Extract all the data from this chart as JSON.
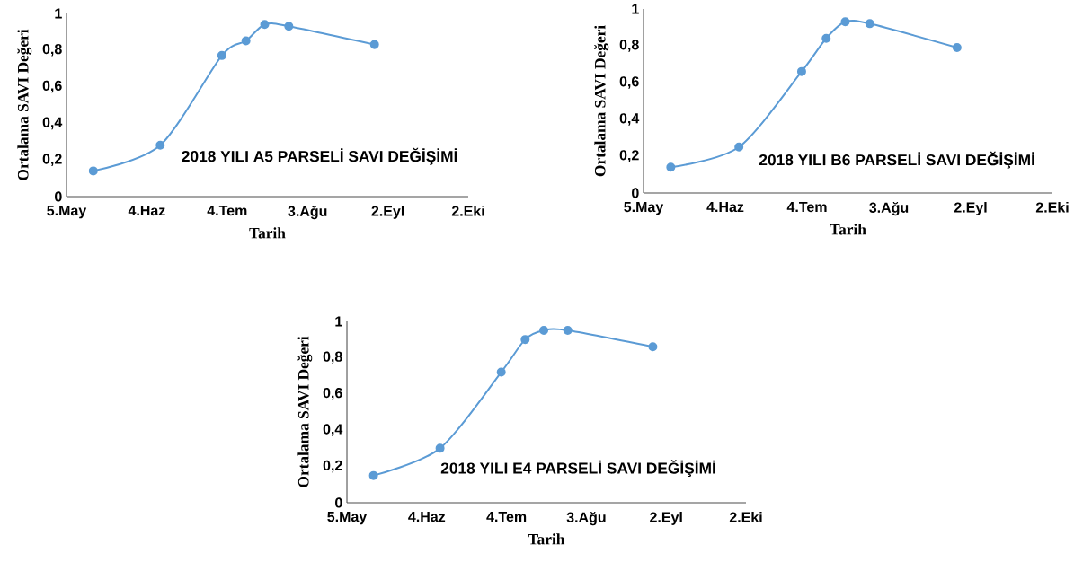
{
  "chart_data": [
    {
      "type": "line",
      "title": "2018 YILI A5 PARSELİ SAVI DEĞİŞİMİ",
      "xlabel": "Tarih",
      "ylabel": "Ortalama SAVI Değeri",
      "x": [
        "2018-05-15",
        "2018-06-09",
        "2018-07-02",
        "2018-07-11",
        "2018-07-18",
        "2018-07-27",
        "2018-08-28"
      ],
      "series": [
        {
          "color": "#5b9bd5",
          "values": [
            0.14,
            0.28,
            0.77,
            0.85,
            0.94,
            0.93,
            0.83
          ]
        }
      ],
      "xlim": [
        "2018-05-05",
        "2018-10-02"
      ],
      "ylim": [
        0,
        1
      ],
      "xticks": [
        {
          "value": "2018-05-05",
          "label": "5.May"
        },
        {
          "value": "2018-06-04",
          "label": "4.Haz"
        },
        {
          "value": "2018-07-04",
          "label": "4.Tem"
        },
        {
          "value": "2018-08-03",
          "label": "3.Ağu"
        },
        {
          "value": "2018-09-02",
          "label": "2.Eyl"
        },
        {
          "value": "2018-10-02",
          "label": "2.Eki"
        }
      ],
      "yticks": [
        {
          "value": 0,
          "label": "0"
        },
        {
          "value": 0.2,
          "label": "0,2"
        },
        {
          "value": 0.4,
          "label": "0,4"
        },
        {
          "value": 0.6,
          "label": "0,6"
        },
        {
          "value": 0.8,
          "label": "0,8"
        },
        {
          "value": 1,
          "label": "1"
        }
      ],
      "marker": "circle",
      "grid": false
    },
    {
      "type": "line",
      "title": "2018 YILI B6 PARSELİ SAVI DEĞİŞİMİ",
      "xlabel": "Tarih",
      "ylabel": "Ortalama SAVI Değeri",
      "x": [
        "2018-05-15",
        "2018-06-09",
        "2018-07-02",
        "2018-07-11",
        "2018-07-18",
        "2018-07-27",
        "2018-08-28"
      ],
      "series": [
        {
          "color": "#5b9bd5",
          "values": [
            0.14,
            0.25,
            0.66,
            0.84,
            0.93,
            0.92,
            0.79
          ]
        }
      ],
      "xlim": [
        "2018-05-05",
        "2018-10-02"
      ],
      "ylim": [
        0,
        1
      ],
      "xticks": [
        {
          "value": "2018-05-05",
          "label": "5.May"
        },
        {
          "value": "2018-06-04",
          "label": "4.Haz"
        },
        {
          "value": "2018-07-04",
          "label": "4.Tem"
        },
        {
          "value": "2018-08-03",
          "label": "3.Ağu"
        },
        {
          "value": "2018-09-02",
          "label": "2.Eyl"
        },
        {
          "value": "2018-10-02",
          "label": "2.Eki"
        }
      ],
      "yticks": [
        {
          "value": 0,
          "label": "0"
        },
        {
          "value": 0.2,
          "label": "0,2"
        },
        {
          "value": 0.4,
          "label": "0,4"
        },
        {
          "value": 0.6,
          "label": "0,6"
        },
        {
          "value": 0.8,
          "label": "0,8"
        },
        {
          "value": 1,
          "label": "1"
        }
      ],
      "marker": "circle",
      "grid": false
    },
    {
      "type": "line",
      "title": "2018 YILI E4 PARSELİ SAVI DEĞİŞİMİ",
      "xlabel": "Tarih",
      "ylabel": "Ortalama SAVI Değeri",
      "x": [
        "2018-05-15",
        "2018-06-09",
        "2018-07-02",
        "2018-07-11",
        "2018-07-18",
        "2018-07-27",
        "2018-08-28"
      ],
      "series": [
        {
          "color": "#5b9bd5",
          "values": [
            0.15,
            0.3,
            0.72,
            0.9,
            0.95,
            0.95,
            0.86
          ]
        }
      ],
      "xlim": [
        "2018-05-05",
        "2018-10-02"
      ],
      "ylim": [
        0,
        1
      ],
      "xticks": [
        {
          "value": "2018-05-05",
          "label": "5.May"
        },
        {
          "value": "2018-06-04",
          "label": "4.Haz"
        },
        {
          "value": "2018-07-04",
          "label": "4.Tem"
        },
        {
          "value": "2018-08-03",
          "label": "3.Ağu"
        },
        {
          "value": "2018-09-02",
          "label": "2.Eyl"
        },
        {
          "value": "2018-10-02",
          "label": "2.Eki"
        }
      ],
      "yticks": [
        {
          "value": 0,
          "label": "0"
        },
        {
          "value": 0.2,
          "label": "0,2"
        },
        {
          "value": 0.4,
          "label": "0,4"
        },
        {
          "value": 0.6,
          "label": "0,6"
        },
        {
          "value": 0.8,
          "label": "0,8"
        },
        {
          "value": 1,
          "label": "1"
        }
      ],
      "marker": "circle",
      "grid": false
    }
  ]
}
